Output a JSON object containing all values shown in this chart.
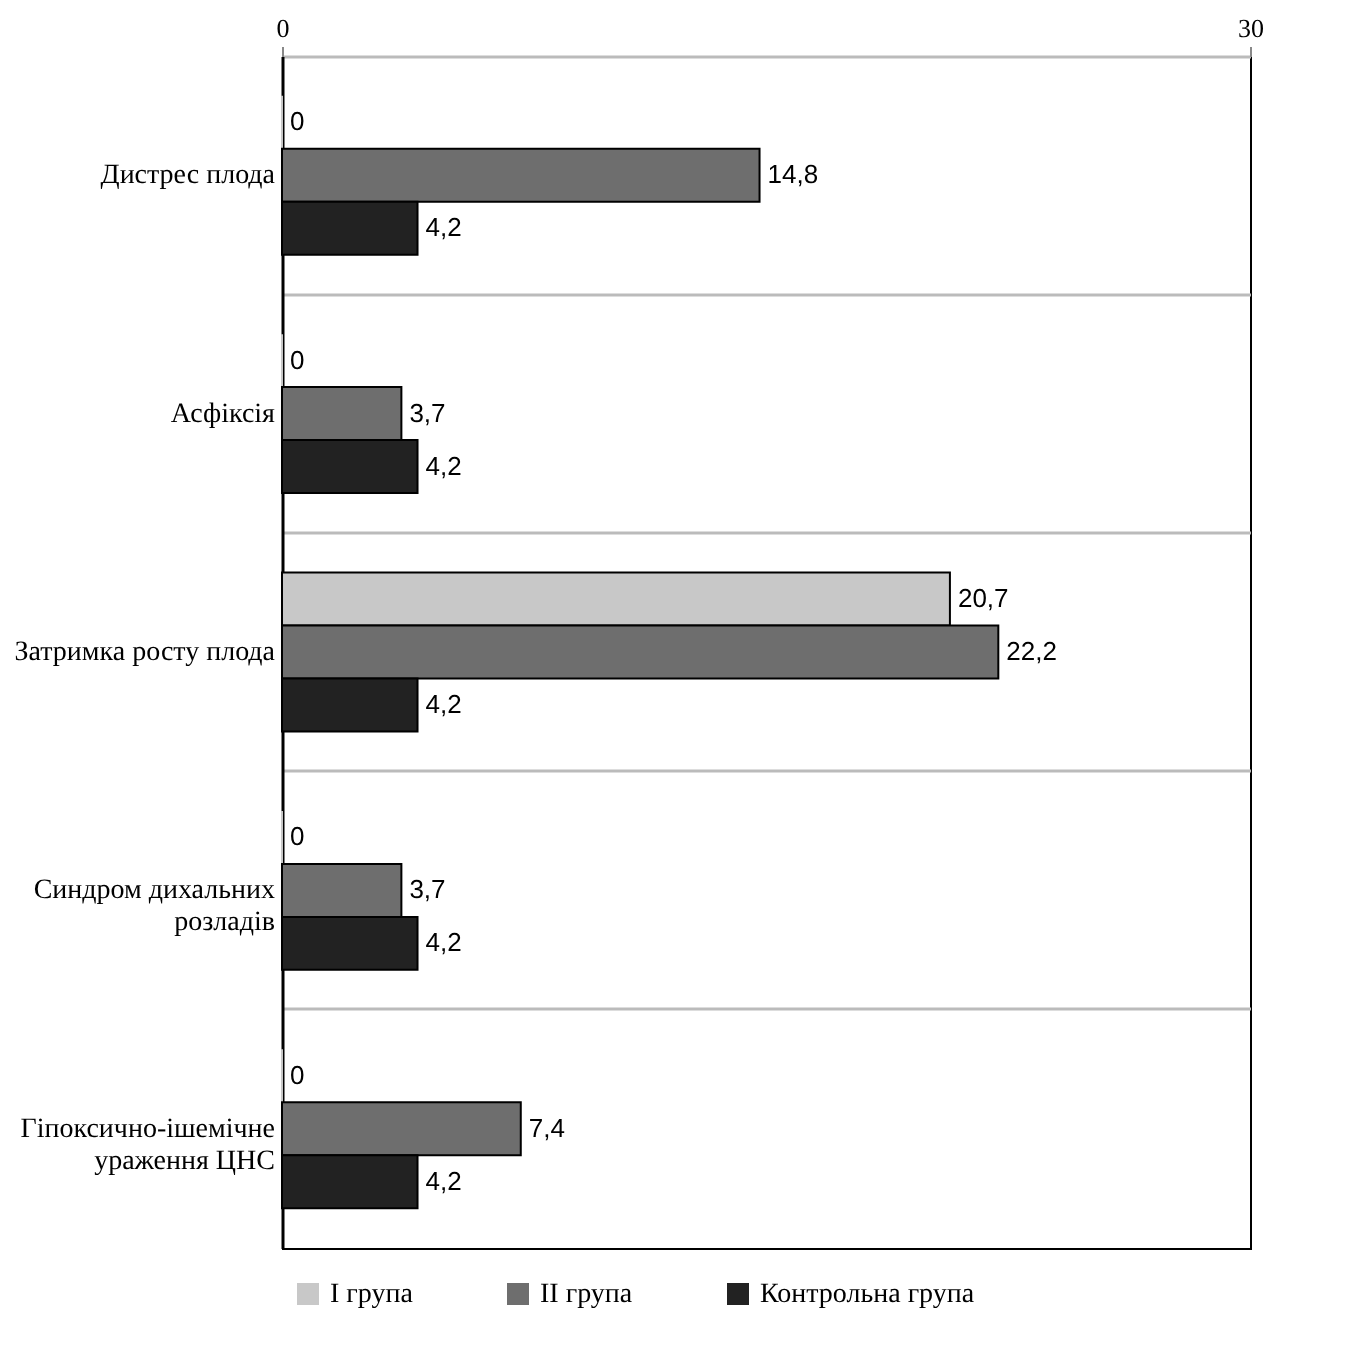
{
  "chart_data": {
    "type": "bar",
    "orientation": "horizontal",
    "categories": [
      "Дистрес плода",
      "Асфіксія",
      "Затримка росту плода",
      "Синдром дихальних розладів",
      "Гіпоксично-ішемічне ураження ЦНС"
    ],
    "series": [
      {
        "name": "I група",
        "color": "#c8c8c8",
        "values": [
          0,
          0,
          20.7,
          0,
          0
        ],
        "value_labels": [
          "0",
          "0",
          "20,7",
          "0",
          "0"
        ]
      },
      {
        "name": "II група",
        "color": "#6e6e6e",
        "values": [
          14.8,
          3.7,
          22.2,
          3.7,
          7.4
        ],
        "value_labels": [
          "14,8",
          "3,7",
          "22,2",
          "3,7",
          "7,4"
        ]
      },
      {
        "name": "Контрольна група",
        "color": "#222222",
        "values": [
          4.2,
          4.2,
          4.2,
          4.2,
          4.2
        ],
        "value_labels": [
          "4,2",
          "4,2",
          "4,2",
          "4,2",
          "4,2"
        ]
      }
    ],
    "xlim": [
      0,
      30
    ],
    "xticks": [
      0,
      30
    ],
    "grid": "y",
    "legend": "bottom"
  }
}
